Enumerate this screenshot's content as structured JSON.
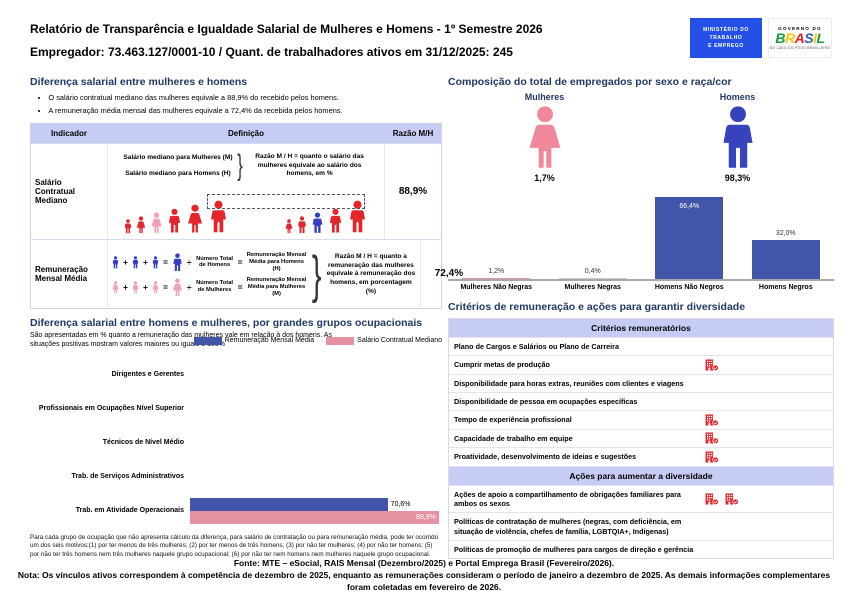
{
  "colors": {
    "navy": "#1F3864",
    "lavender": "#C7CCF4",
    "mte_blue": "#2450E8",
    "fig_red": "#E3262C",
    "fig_pink": "#F2A0B5",
    "fig_blue": "#3340C4",
    "icon_red": "#E3262C",
    "woman_pink": "#F0879B",
    "man_blue": "#3743BD"
  },
  "header": {
    "title_line1": "Relatório de Transparência e Igualdade Salarial de Mulheres e Homens - 1º Semestre 2026",
    "title_line2": "Empregador: 73.463.127/0001-10 / Quant. de trabalhadores ativos em 31/12/2025: 245",
    "mte_logo_lines": [
      "MINISTÉRIO DO",
      "TRABALHO",
      "E EMPREGO"
    ],
    "gov_logo": {
      "top": "GOVERNO DO",
      "brasil_letters": [
        {
          "ch": "B",
          "color": "#149B3F"
        },
        {
          "ch": "R",
          "color": "#FFC60B"
        },
        {
          "ch": "A",
          "color": "#E52322"
        },
        {
          "ch": "S",
          "color": "#2E5FAA"
        },
        {
          "ch": "I",
          "color": "#FFC60B"
        },
        {
          "ch": "L",
          "color": "#149B3F"
        }
      ],
      "tagline": "DO LADO DO POVO BRASILEIRO"
    }
  },
  "wage_gap": {
    "title": "Diferença salarial entre mulheres e homens",
    "bullets": [
      "O salário contratual mediano das mulheres equivale a 88,9% do recebido pelos homens.",
      "A remuneração média mensal das mulheres equivale a 72,4% da recebida pelos homens."
    ],
    "table_headers": [
      "Indicador",
      "Definição",
      "Razão M/H"
    ],
    "row1": {
      "indicator": "Salário Contratual Mediano",
      "def_line1": "Salário mediano para Mulheres (M)",
      "def_line2": "Salário mediano para Homens (H)",
      "ratio_note": "Razão M / H = quanto o salário das mulheres equivale ao salário dos homens, em %",
      "ratio": "88,9%"
    },
    "row2": {
      "indicator": "Remuneração Mensal Média",
      "divide_sign": "÷",
      "plus_sign": "+",
      "equals_sign": "=",
      "men_divisor": "Número Total de Homens",
      "men_result": "Remuneração Mensal Média para Homens (H)",
      "women_divisor": "Número Total de Mulheres",
      "women_result": "Remuneração Mensal Média para Mulheres (M)",
      "ratio_note": "Razão M / H = quanto a remuneração das mulheres equivale à remuneração dos homens, em porcentagem (%)",
      "ratio": "72,4%"
    }
  },
  "composition": {
    "title": "Composição do total de empregados por sexo e raça/cor",
    "women_label": "Mulheres",
    "women_pct": "1,7%",
    "men_label": "Homens",
    "men_pct": "98,3%"
  },
  "occupational": {
    "title": "Diferença salarial entre homens e mulheres, por grandes grupos ocupacionais",
    "subtitle": "São apresentadas em % quanto a remuneração das mulheres vale em relação à dos homens. As situações positivas mostram valores maiores ou iguais a 100%",
    "footnote": "Para cada grupo de ocupação que não apresenta cálculo da diferença, para salário de contratação ou para remuneração média, pode ter ocorrido um dos seis motivos:(1) por ter menos de três mulheres; (2) por ter menos de três homens; (3) por não ter mulheres; (4) por não ter homens; (5) por não ter três homens nem três mulheres naquele grupo ocupacional; (6) por não ter nem homens nem mulheres naquele grupo ocupacional."
  },
  "criteria": {
    "title": "Critérios de remuneração e ações para garantir diversidade",
    "section1_header": "Critérios remuneratórios",
    "section1_rows": [
      {
        "label": "Plano de Cargos e Salários ou Plano de Carreira",
        "icons": 0
      },
      {
        "label": "Cumprir metas de produção",
        "icons": 1
      },
      {
        "label": "Disponibilidade para horas extras, reuniões com clientes e viagens",
        "icons": 0
      },
      {
        "label": "Disponibilidade de pessoa em ocupações específicas",
        "icons": 0
      },
      {
        "label": "Tempo de experiência profissional",
        "icons": 1
      },
      {
        "label": "Capacidade de trabalho em equipe",
        "icons": 1
      },
      {
        "label": "Proatividade, desenvolvimento de ideias e sugestões",
        "icons": 1
      }
    ],
    "section2_header": "Ações para aumentar a diversidade",
    "section2_rows": [
      {
        "label": "Ações de apoio a compartilhamento de obrigações familiares para ambos os sexos",
        "icons": 2
      },
      {
        "label": "Políticas de contratação de mulheres (negras, com deficiência, em situação de violência, chefes de família, LGBTQIA+, Indígenas)",
        "icons": 0
      },
      {
        "label": "Políticas de promoção de mulheres para cargos de direção e gerência",
        "icons": 0
      }
    ]
  },
  "footer": {
    "fonte": "Fonte: MTE – eSocial, RAIS Mensal (Dezembro/2025) e Portal Emprega Brasil (Fevereiro/2026).",
    "nota": "Nota: Os vínculos ativos correspondem à competência de dezembro de 2025, enquanto as remunerações consideram o período de janeiro a dezembro de 2025. As demais informações complementares foram coletadas em fevereiro de 2026."
  },
  "chart_data": [
    {
      "type": "bar",
      "title": "Composição do total de empregados por sexo e raça/cor",
      "categories": [
        "Mulheres Não Negras",
        "Mulheres Negras",
        "Homens Não Negros",
        "Homens Negros"
      ],
      "values": [
        1.2,
        0.4,
        66.4,
        32.0
      ],
      "value_labels": [
        "1,2%",
        "0,4%",
        "66,4%",
        "32,0%"
      ],
      "bar_colors": [
        "#E593A2",
        "#C9CBD1",
        "#4355A8",
        "#4355A8"
      ],
      "xlabel": "",
      "ylabel": "",
      "ylim": [
        0,
        70
      ],
      "grid": false,
      "legend": "none"
    },
    {
      "type": "bar",
      "orientation": "horizontal",
      "title": "Diferença salarial entre homens e mulheres, por grandes grupos ocupacionais",
      "categories": [
        "Dirigentes e Gerentes",
        "Profissionais em Ocupações Nível Superior",
        "Técnicos de Nível Médio",
        "Trab. de Serviços Administrativos",
        "Trab. em Atividade Operacionais"
      ],
      "series": [
        {
          "name": "Remuneração Mensal Média",
          "color": "#4355A8",
          "values": [
            null,
            null,
            null,
            null,
            70.6
          ],
          "value_labels": [
            null,
            null,
            null,
            null,
            "70,6%"
          ]
        },
        {
          "name": "Salário Contratual Mediano",
          "color": "#E593A2",
          "values": [
            null,
            null,
            null,
            null,
            88.9
          ],
          "value_labels": [
            null,
            null,
            null,
            null,
            "88,9%"
          ]
        }
      ],
      "xlim": [
        0,
        90
      ],
      "grid": false,
      "legend": "top-right"
    }
  ]
}
